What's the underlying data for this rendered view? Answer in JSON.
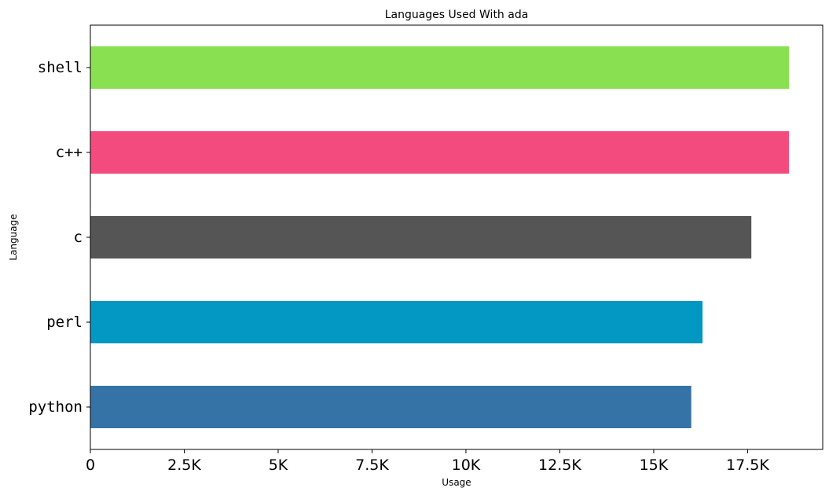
{
  "chart_data": {
    "type": "bar",
    "orientation": "horizontal",
    "title": "Languages Used With ada",
    "xlabel": "Usage",
    "ylabel": "Language",
    "categories": [
      "python",
      "perl",
      "c",
      "c++",
      "shell"
    ],
    "values": [
      16000,
      16300,
      17600,
      18600,
      18600
    ],
    "colors": [
      "#3572A5",
      "#0298c3",
      "#555555",
      "#f34b7d",
      "#89e051"
    ],
    "xlim": [
      0,
      19500
    ],
    "xticks": [
      0,
      2500,
      5000,
      7500,
      10000,
      12500,
      15000,
      17500
    ],
    "xtick_labels": [
      "0",
      "2.5K",
      "5K",
      "7.5K",
      "10K",
      "12.5K",
      "15K",
      "17.5K"
    ],
    "grid": false,
    "legend": "none"
  }
}
